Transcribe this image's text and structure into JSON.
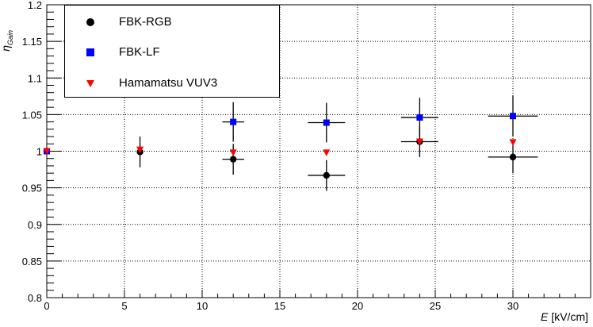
{
  "chart_data": {
    "type": "scatter",
    "title": "",
    "xlabel_main": "E",
    "xlabel_unit": "[kV/cm]",
    "ylabel_main": "η",
    "ylabel_sub": "Gain",
    "xlim": [
      0,
      35
    ],
    "ylim": [
      0.8,
      1.2
    ],
    "xticks": [
      0,
      5,
      10,
      15,
      20,
      25,
      30
    ],
    "xtick_labels": [
      "0",
      "5",
      "10",
      "15",
      "20",
      "25",
      "30"
    ],
    "yticks": [
      0.8,
      0.85,
      0.9,
      0.95,
      1.0,
      1.05,
      1.1,
      1.15,
      1.2
    ],
    "ytick_labels": [
      "0.8",
      "0.85",
      "0.9",
      "0.95",
      "1",
      "1.05",
      "1.1",
      "1.15",
      "1.2"
    ],
    "grid": true,
    "legend_position": "top-left",
    "series": [
      {
        "name": "FBK-RGB",
        "marker": "circle",
        "color": "#000000",
        "points": [
          {
            "x": 0,
            "y": 1.0,
            "xerr": 0,
            "yerr": 0
          },
          {
            "x": 6,
            "y": 0.999,
            "xerr": 0,
            "yerr": 0.021
          },
          {
            "x": 12,
            "y": 0.989,
            "xerr": 0.7,
            "yerr": 0.021
          },
          {
            "x": 18,
            "y": 0.967,
            "xerr": 1.2,
            "yerr": 0.021
          },
          {
            "x": 24,
            "y": 1.013,
            "xerr": 1.2,
            "yerr": 0.021
          },
          {
            "x": 30,
            "y": 0.992,
            "xerr": 1.6,
            "yerr": 0.022
          }
        ]
      },
      {
        "name": "FBK-LF",
        "marker": "square",
        "color": "#0000ff",
        "points": [
          {
            "x": 0,
            "y": 1.0,
            "xerr": 0,
            "yerr": 0
          },
          {
            "x": 12,
            "y": 1.04,
            "xerr": 0.7,
            "yerr": 0.027
          },
          {
            "x": 18,
            "y": 1.039,
            "xerr": 1.2,
            "yerr": 0.027
          },
          {
            "x": 24,
            "y": 1.046,
            "xerr": 1.2,
            "yerr": 0.027
          },
          {
            "x": 30,
            "y": 1.048,
            "xerr": 1.6,
            "yerr": 0.028
          }
        ]
      },
      {
        "name": "Hamamatsu VUV3",
        "marker": "triangle-down",
        "color": "#ff0000",
        "points": [
          {
            "x": 0,
            "y": 1.0,
            "xerr": 0,
            "yerr": 0
          },
          {
            "x": 6,
            "y": 1.002,
            "xerr": 0,
            "yerr": 0
          },
          {
            "x": 12,
            "y": 0.998,
            "xerr": 0,
            "yerr": 0
          },
          {
            "x": 18,
            "y": 0.998,
            "xerr": 0,
            "yerr": 0
          },
          {
            "x": 24,
            "y": 1.013,
            "xerr": 0,
            "yerr": 0
          },
          {
            "x": 30,
            "y": 1.012,
            "xerr": 0,
            "yerr": 0
          }
        ]
      }
    ]
  }
}
